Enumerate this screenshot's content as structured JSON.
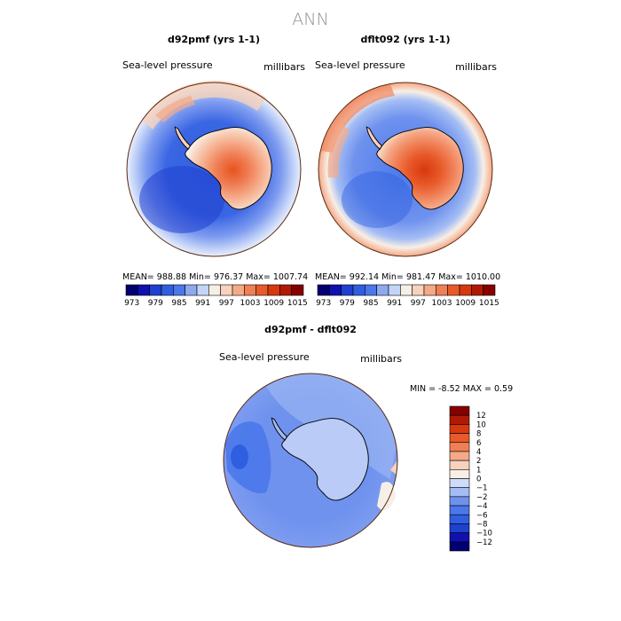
{
  "figure_title": "ANN",
  "panels": [
    {
      "title": "d92pmf (yrs 1-1)",
      "variable": "Sea-level pressure",
      "units": "millibars",
      "stats": {
        "mean_label": "MEAN=",
        "mean": "988.88",
        "min_label": "Min=",
        "min": "976.37",
        "max_label": "Max=",
        "max": "1007.74"
      }
    },
    {
      "title": "dflt092 (yrs 1-1)",
      "variable": "Sea-level pressure",
      "units": "millibars",
      "stats": {
        "mean_label": "MEAN=",
        "mean": "992.14",
        "min_label": "Min=",
        "min": "981.47",
        "max_label": "Max=",
        "max": "1010.00"
      }
    },
    {
      "title": "d92pmf - dflt092",
      "variable": "Sea-level pressure",
      "units": "millibars",
      "stats": {
        "min_label": "MIN =",
        "min": "-8.52",
        "max_label": "MAX =",
        "max": "0.59"
      }
    }
  ],
  "colorbar_top": {
    "colors": [
      "#000070",
      "#1010b0",
      "#2040d0",
      "#2f5fe0",
      "#4a78ea",
      "#8fa8f0",
      "#c4d4f7",
      "#f7efe6",
      "#f8d2bc",
      "#f5a987",
      "#f07f56",
      "#e85a2a",
      "#d8380e",
      "#b01a04",
      "#860000"
    ],
    "tick_labels": [
      "973",
      "979",
      "985",
      "991",
      "997",
      "1003",
      "1009",
      "1015"
    ]
  },
  "colorbar_diff": {
    "colors": [
      "#000070",
      "#1010b0",
      "#2040d0",
      "#2f5fe0",
      "#4a78ea",
      "#6f92ee",
      "#a4bdf4",
      "#cddcf9",
      "#f7efe6",
      "#f8d2bc",
      "#f5a987",
      "#f07f56",
      "#e85a2a",
      "#d8380e",
      "#b01a04",
      "#860000"
    ],
    "tick_labels": [
      "12",
      "10",
      "8",
      "6",
      "4",
      "2",
      "1",
      "0",
      "−1",
      "−2",
      "−4",
      "−6",
      "−8",
      "−10",
      "−12"
    ]
  }
}
